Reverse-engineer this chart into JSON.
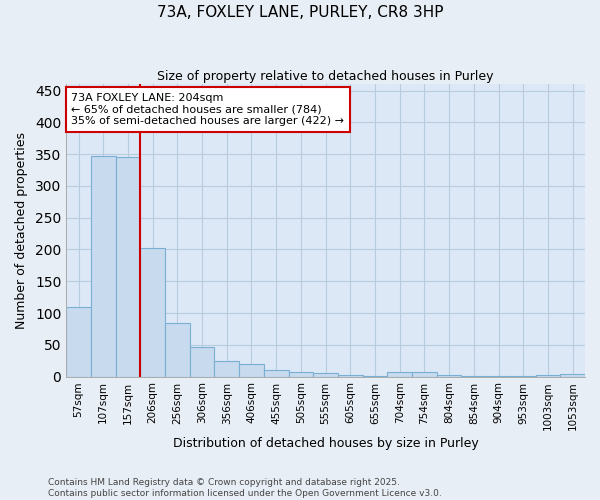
{
  "title": "73A, FOXLEY LANE, PURLEY, CR8 3HP",
  "subtitle": "Size of property relative to detached houses in Purley",
  "xlabel": "Distribution of detached houses by size in Purley",
  "ylabel": "Number of detached properties",
  "categories": [
    "57sqm",
    "107sqm",
    "157sqm",
    "206sqm",
    "256sqm",
    "306sqm",
    "356sqm",
    "406sqm",
    "455sqm",
    "505sqm",
    "555sqm",
    "605sqm",
    "655sqm",
    "704sqm",
    "754sqm",
    "804sqm",
    "854sqm",
    "904sqm",
    "953sqm",
    "1003sqm",
    "1053sqm"
  ],
  "values": [
    110,
    347,
    346,
    203,
    85,
    46,
    25,
    20,
    10,
    7,
    6,
    2,
    1,
    7,
    7,
    2,
    1,
    1,
    1,
    3,
    4
  ],
  "bar_color": "#c8daee",
  "bar_edge_color": "#7aafd4",
  "page_bg_color": "#e8eef5",
  "plot_bg_color": "#dce8f5",
  "grid_color": "#b8cce0",
  "vline_color": "#cc0000",
  "annotation_text": "73A FOXLEY LANE: 204sqm\n← 65% of detached houses are smaller (784)\n35% of semi-detached houses are larger (422) →",
  "annotation_box_color": "#ffffff",
  "annotation_box_edge": "#cc0000",
  "footer_text": "Contains HM Land Registry data © Crown copyright and database right 2025.\nContains public sector information licensed under the Open Government Licence v3.0.",
  "ylim": [
    0,
    460
  ],
  "yticks": [
    0,
    50,
    100,
    150,
    200,
    250,
    300,
    350,
    400,
    450
  ],
  "vline_bin_index": 3,
  "figsize": [
    6.0,
    5.0
  ],
  "dpi": 100
}
